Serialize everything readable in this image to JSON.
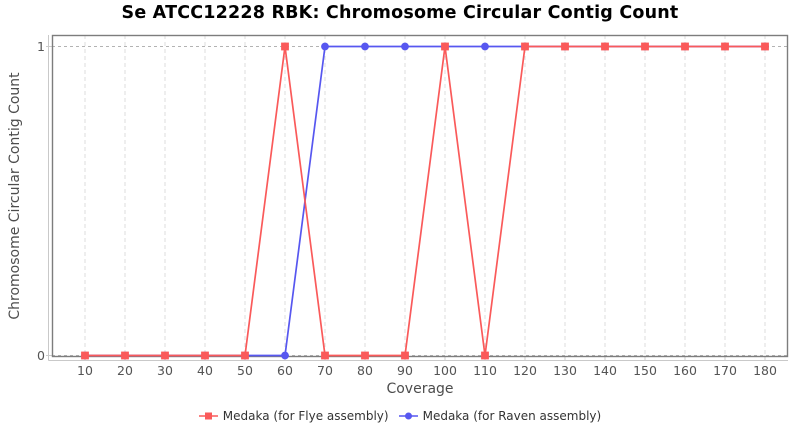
{
  "chart_data": {
    "type": "line",
    "title": "Se ATCC12228 RBK: Chromosome Circular Contig Count",
    "xlabel": "Coverage",
    "ylabel": "Chromosome Circular Contig Count",
    "x": [
      10,
      20,
      30,
      40,
      50,
      60,
      70,
      80,
      90,
      100,
      110,
      120,
      130,
      140,
      150,
      160,
      170,
      180
    ],
    "xticks": [
      10,
      20,
      30,
      40,
      50,
      60,
      70,
      80,
      90,
      100,
      110,
      120,
      130,
      140,
      150,
      160,
      170,
      180
    ],
    "yticks": [
      0,
      1
    ],
    "ylim": [
      0,
      1
    ],
    "xlim": [
      2,
      186
    ],
    "grid": true,
    "legend_position": "bottom",
    "series": [
      {
        "name": "Medaka (for Flye assembly)",
        "color": "#fa5a5a",
        "marker": "square",
        "values": [
          0,
          0,
          0,
          0,
          0,
          1,
          0,
          0,
          0,
          1,
          0,
          1,
          1,
          1,
          1,
          1,
          1,
          1
        ]
      },
      {
        "name": "Medaka (for Raven assembly)",
        "color": "#5757f0",
        "marker": "circle",
        "values": [
          0,
          0,
          0,
          0,
          0,
          0,
          1,
          1,
          1,
          1,
          1,
          1,
          1,
          1,
          1,
          1,
          1,
          1
        ]
      }
    ],
    "colors": {
      "title": "#000000",
      "grid_vertical": "#dedede",
      "grid_horizontal": "#b3b3b3",
      "border": "#7d7d7d",
      "axis_line": "#c9c9c9",
      "tick": "#cccccc",
      "tick_label": "#545454",
      "axis_label": "#4d4d4d",
      "legend_text": "#333333"
    }
  }
}
